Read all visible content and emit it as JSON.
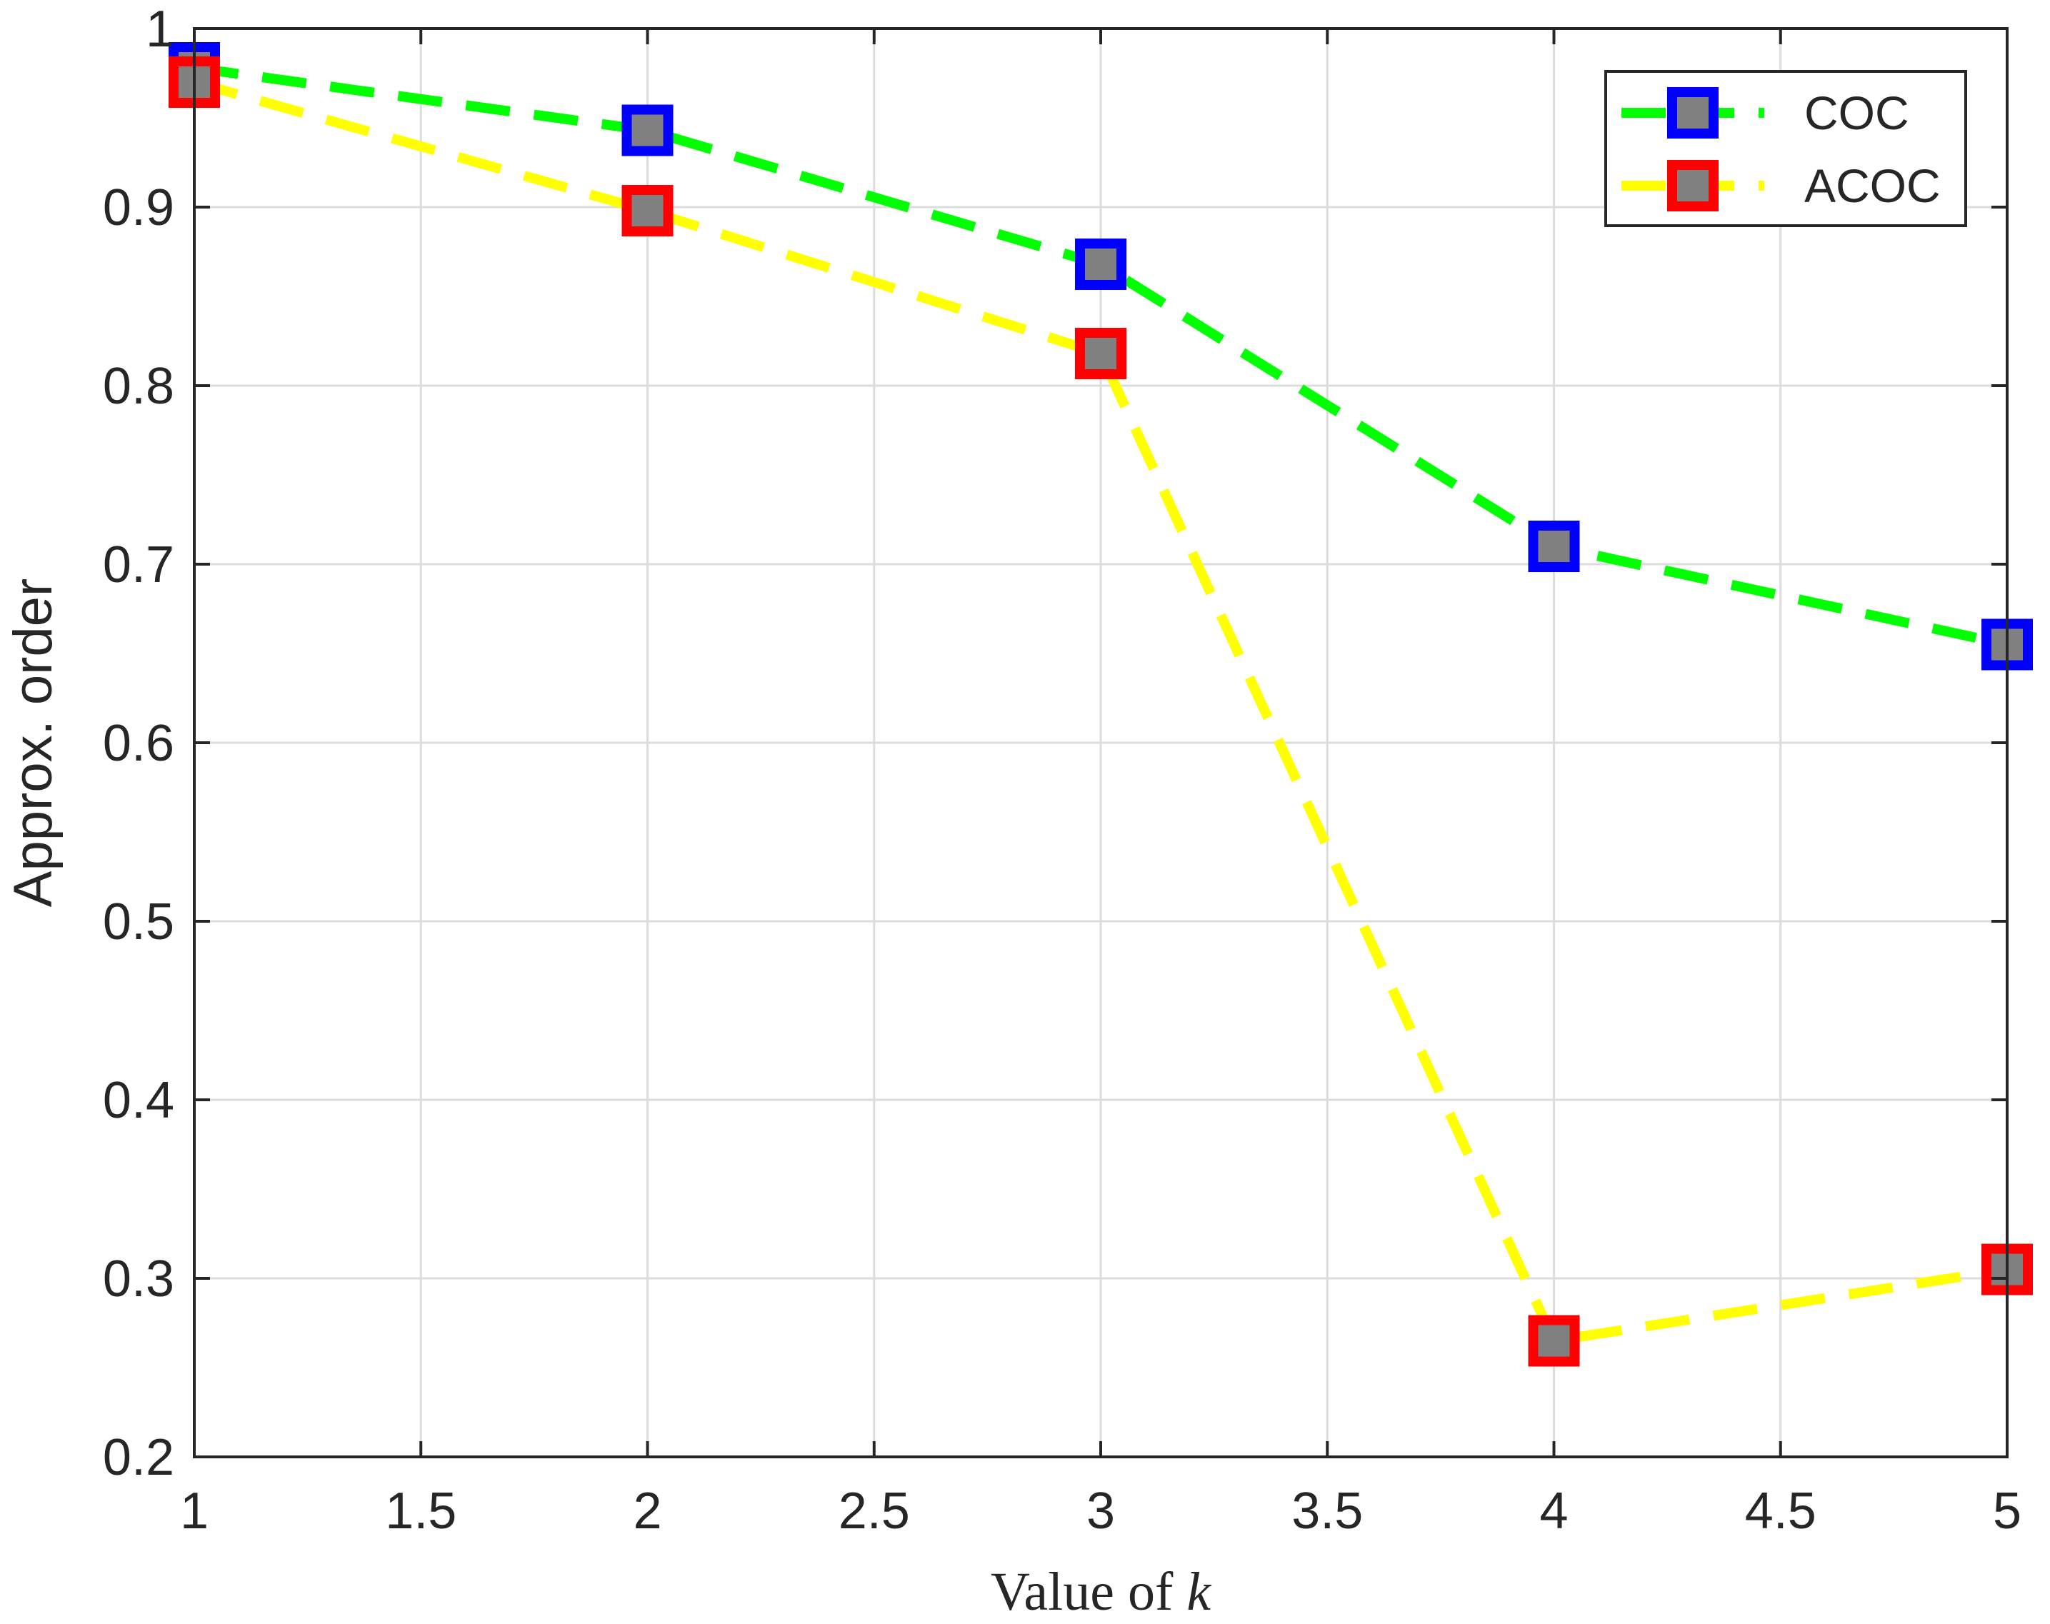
{
  "chart_data": {
    "type": "line",
    "xlabel": "Value of k",
    "xlabel_parts": {
      "prefix": "Value of ",
      "variable": "k"
    },
    "ylabel": "Approx. order",
    "xlim": [
      1,
      5
    ],
    "ylim": [
      0.2,
      1
    ],
    "xticks": [
      1,
      1.5,
      2,
      2.5,
      3,
      3.5,
      4,
      4.5,
      5
    ],
    "xtick_labels": [
      "1",
      "1.5",
      "2",
      "2.5",
      "3",
      "3.5",
      "4",
      "4.5",
      "5"
    ],
    "yticks": [
      0.2,
      0.3,
      0.4,
      0.5,
      0.6,
      0.7,
      0.8,
      0.9,
      1
    ],
    "ytick_labels": [
      "0.2",
      "0.3",
      "0.4",
      "0.5",
      "0.6",
      "0.7",
      "0.8",
      "0.9",
      "1"
    ],
    "grid": true,
    "legend_position": "top-right",
    "x": [
      1,
      2,
      3,
      4,
      5
    ],
    "series": [
      {
        "name": "COC",
        "values": [
          0.978,
          0.943,
          0.868,
          0.71,
          0.655
        ],
        "line_color": "#00ff00",
        "marker_edge_color": "#0000ff",
        "marker_face_color": "#808080",
        "line_style": "dashed",
        "marker": "square"
      },
      {
        "name": "ACOC",
        "values": [
          0.97,
          0.898,
          0.818,
          0.265,
          0.305
        ],
        "line_color": "#ffff00",
        "marker_edge_color": "#ff0000",
        "marker_face_color": "#808080",
        "line_style": "dashed",
        "marker": "square"
      }
    ]
  }
}
